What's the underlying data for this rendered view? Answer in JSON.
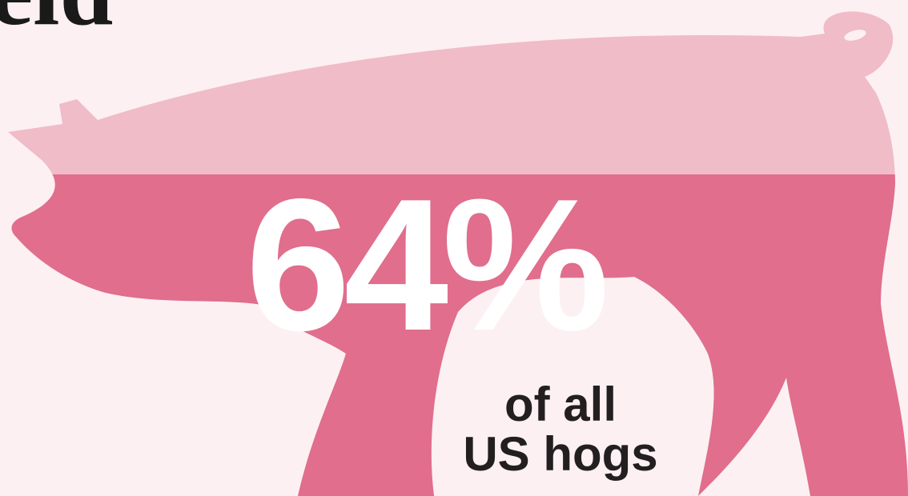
{
  "heading": "eld",
  "stat": "64%",
  "caption": [
    "of all",
    "US hogs"
  ]
}
